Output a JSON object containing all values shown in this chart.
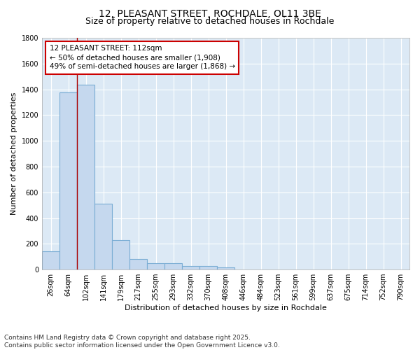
{
  "title": "12, PLEASANT STREET, ROCHDALE, OL11 3BE",
  "subtitle": "Size of property relative to detached houses in Rochdale",
  "xlabel": "Distribution of detached houses by size in Rochdale",
  "ylabel": "Number of detached properties",
  "categories": [
    "26sqm",
    "64sqm",
    "102sqm",
    "141sqm",
    "179sqm",
    "217sqm",
    "255sqm",
    "293sqm",
    "332sqm",
    "370sqm",
    "408sqm",
    "446sqm",
    "484sqm",
    "523sqm",
    "561sqm",
    "599sqm",
    "637sqm",
    "675sqm",
    "714sqm",
    "752sqm",
    "790sqm"
  ],
  "values": [
    140,
    1375,
    1435,
    510,
    230,
    80,
    50,
    50,
    30,
    30,
    15,
    0,
    0,
    0,
    0,
    0,
    0,
    0,
    0,
    0,
    0
  ],
  "bar_color": "#c5d8ee",
  "bar_edge_color": "#7aadd4",
  "vline_x": 1.5,
  "vline_color": "#aa0000",
  "annotation_text": "12 PLEASANT STREET: 112sqm\n← 50% of detached houses are smaller (1,908)\n49% of semi-detached houses are larger (1,868) →",
  "annotation_box_color": "#ffffff",
  "annotation_box_edge": "#cc0000",
  "ylim": [
    0,
    1800
  ],
  "yticks": [
    0,
    200,
    400,
    600,
    800,
    1000,
    1200,
    1400,
    1600,
    1800
  ],
  "bg_color": "#dce9f5",
  "grid_color": "#ffffff",
  "fig_bg_color": "#ffffff",
  "footer": "Contains HM Land Registry data © Crown copyright and database right 2025.\nContains public sector information licensed under the Open Government Licence v3.0.",
  "title_fontsize": 10,
  "subtitle_fontsize": 9,
  "axis_label_fontsize": 8,
  "tick_fontsize": 7,
  "annotation_fontsize": 7.5,
  "footer_fontsize": 6.5
}
